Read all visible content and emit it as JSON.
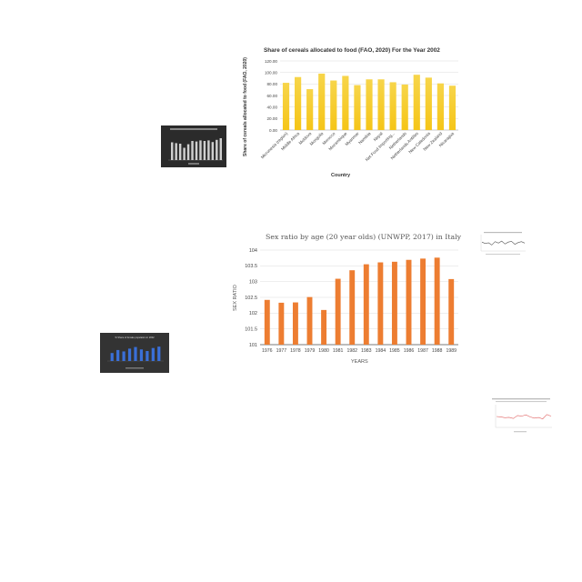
{
  "chart_data": [
    {
      "type": "bar",
      "title": "Share of cereals allocated to food (FAO, 2020)  For the Year 2002",
      "xlabel": "Country",
      "ylabel": "Share of cereals allocated to food (FAO, 2020)",
      "ylim": [
        0,
        120
      ],
      "yticks": [
        "0.00",
        "20.00",
        "40.00",
        "60.00",
        "80.00",
        "100.00",
        "120.00"
      ],
      "grid": true,
      "bar_color": "#f5c518",
      "categories": [
        "Micronesia (region)",
        "Middle Africa",
        "Moldova",
        "Mongolia",
        "Morocco",
        "Mozambique",
        "Myanmar",
        "Namibia",
        "Nepal",
        "Net Food Importing...",
        "Netherlands",
        "Netherlands Antilles",
        "New Caledonia",
        "New Zealand",
        "Nicaragua"
      ],
      "values": [
        82,
        92,
        71,
        98,
        86,
        94,
        78,
        88,
        88,
        83,
        79,
        96,
        91,
        81,
        77
      ]
    },
    {
      "type": "bar",
      "title": "Sex ratio by age (20 year olds) (UNWPP, 2017) in Italy",
      "xlabel": "YEARS",
      "ylabel": "SEX RATIO",
      "ylim": [
        101,
        104
      ],
      "yticks": [
        "101",
        "101.5",
        "102",
        "102.5",
        "103",
        "103.5",
        "104"
      ],
      "grid": true,
      "bar_color": "#ed7d31",
      "categories": [
        "1976",
        "1977",
        "1978",
        "1979",
        "1980",
        "1981",
        "1982",
        "1983",
        "1984",
        "1985",
        "1986",
        "1987",
        "1988",
        "1989"
      ],
      "values": [
        102.42,
        102.33,
        102.34,
        102.51,
        102.1,
        103.09,
        103.36,
        103.55,
        103.61,
        103.63,
        103.69,
        103.73,
        103.76,
        103.08
      ]
    }
  ],
  "thumbnails": {
    "thumb1": {
      "values": [
        65,
        62,
        60,
        45,
        58,
        70,
        68,
        72,
        70,
        72,
        66,
        74,
        80
      ]
    },
    "thumb2": {
      "title": "% Share of female population in 2002",
      "values": [
        40,
        55,
        48,
        62,
        70,
        58,
        50,
        65,
        72
      ]
    },
    "thumb3": {
      "values": [
        55,
        45,
        50,
        35,
        58,
        48,
        62,
        42,
        55,
        60,
        40,
        52,
        58,
        48
      ]
    },
    "thumb4": {
      "values": [
        50,
        48,
        44,
        46,
        40,
        55,
        52,
        58,
        48,
        42,
        45,
        38,
        60,
        52
      ]
    }
  }
}
